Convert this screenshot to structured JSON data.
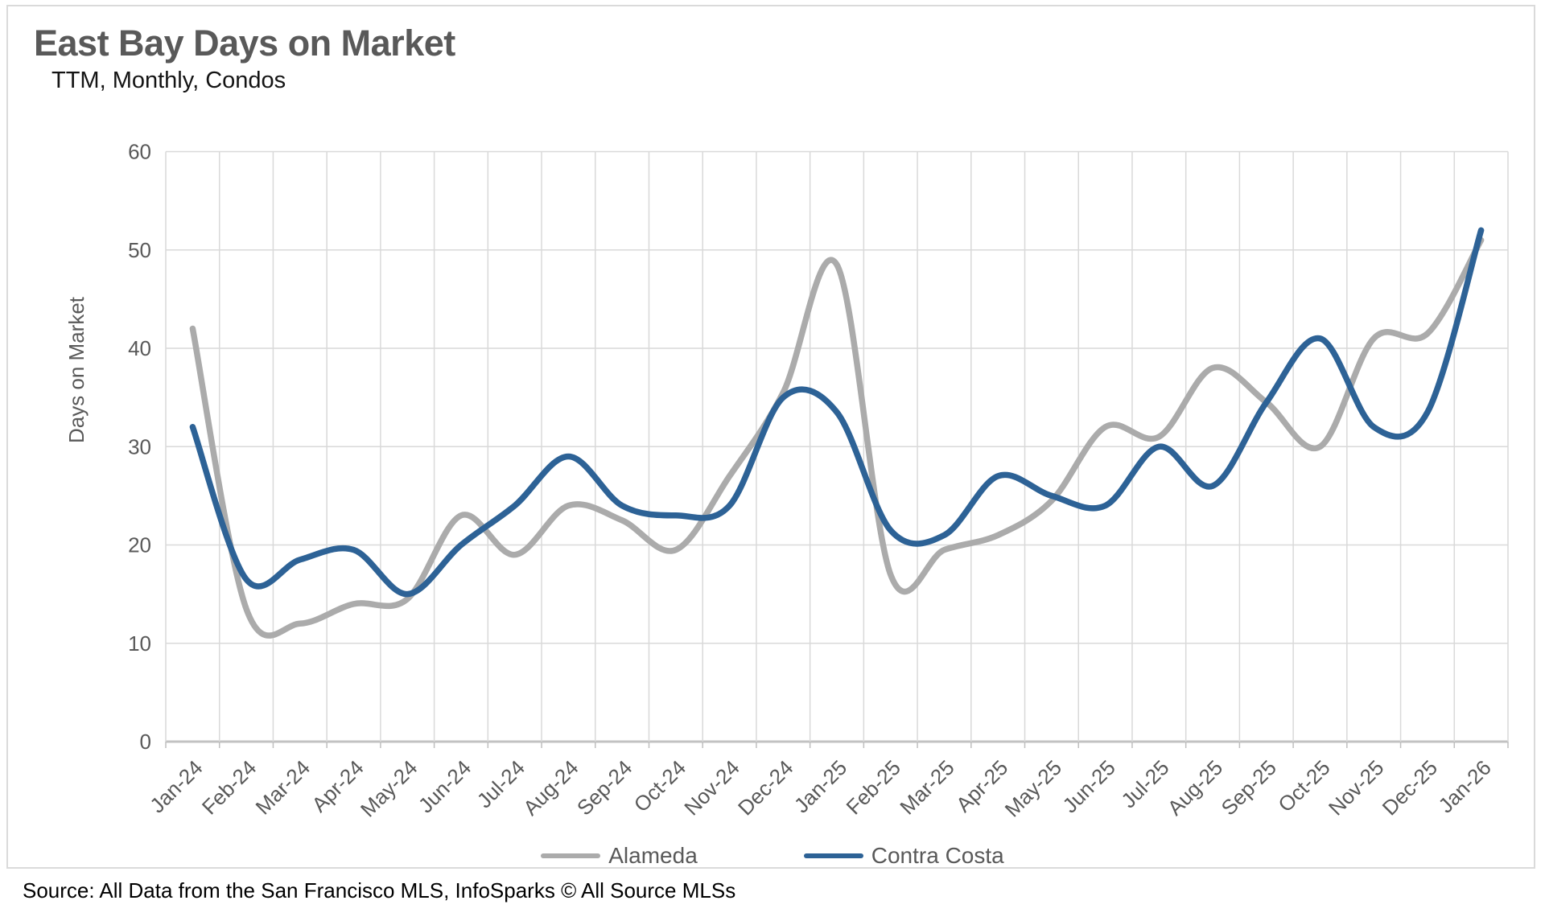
{
  "header": {
    "title": "East Bay Days on Market",
    "subtitle": "TTM, Monthly, Condos"
  },
  "footer": {
    "source": "Source: All Data from the San Francisco MLS, InfoSparks © All Source MLSs"
  },
  "style": {
    "title_color": "#595959",
    "grid_color": "#d9d9d9",
    "axis_line_color": "#c2c2c2",
    "tick_color": "#bfbfbf",
    "axis_label_color": "#595959",
    "background": "#ffffff",
    "border_color": "#dadada"
  },
  "chart_data": {
    "type": "line",
    "title": "East Bay Days on Market",
    "subtitle": "TTM, Monthly, Condos",
    "xlabel": "",
    "ylabel": "Days on Market",
    "ylim": [
      0,
      60
    ],
    "ytick_step": 10,
    "grid": true,
    "smooth": true,
    "legend_position": "bottom",
    "categories": [
      "Jan-24",
      "Feb-24",
      "Mar-24",
      "Apr-24",
      "May-24",
      "Jun-24",
      "Jul-24",
      "Aug-24",
      "Sep-24",
      "Oct-24",
      "Nov-24",
      "Dec-24",
      "Jan-25",
      "Feb-25",
      "Mar-25",
      "Apr-25",
      "May-25",
      "Jun-25",
      "Jul-25",
      "Aug-25",
      "Sep-25",
      "Oct-25",
      "Nov-25",
      "Dec-25",
      "Jan-26"
    ],
    "series": [
      {
        "name": "Alameda",
        "color": "#ababab",
        "values": [
          42,
          13.5,
          12,
          14,
          14.5,
          23,
          19,
          24,
          22.5,
          19.5,
          27,
          35.5,
          48.5,
          17,
          19.5,
          21,
          24.5,
          32,
          31,
          38,
          34.5,
          30,
          41,
          41.5,
          51
        ]
      },
      {
        "name": "Contra Costa",
        "color": "#2d6296",
        "values": [
          32,
          16.5,
          18.5,
          19.5,
          15,
          20,
          24,
          29,
          24,
          23,
          24,
          35,
          33.5,
          21.5,
          21,
          27,
          25,
          24,
          30,
          26,
          34.5,
          41,
          32,
          33.5,
          52
        ]
      }
    ]
  }
}
